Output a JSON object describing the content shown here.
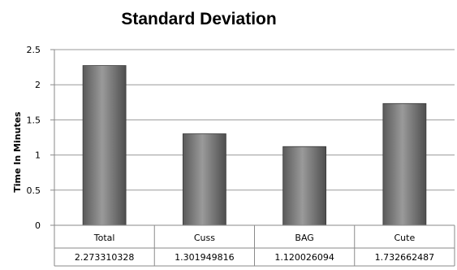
{
  "chart_data": {
    "type": "bar",
    "title": "Standard Deviation",
    "ylabel": "Time In Minutes",
    "xlabel": "",
    "categories": [
      "Total",
      "Cuss",
      "BAG",
      "Cute"
    ],
    "values": [
      2.273310328,
      1.301949816,
      1.120026094,
      1.732662487
    ],
    "value_labels": [
      "2.273310328",
      "1.301949816",
      "1.120026094",
      "1.732662487"
    ],
    "ylim": [
      0,
      2.5
    ],
    "yticks": [
      "0",
      "0.5",
      "1",
      "1.5",
      "2",
      "2.5"
    ],
    "grid": true,
    "legend": "none",
    "data_table": true,
    "bar_color": "#7a7a7a"
  }
}
